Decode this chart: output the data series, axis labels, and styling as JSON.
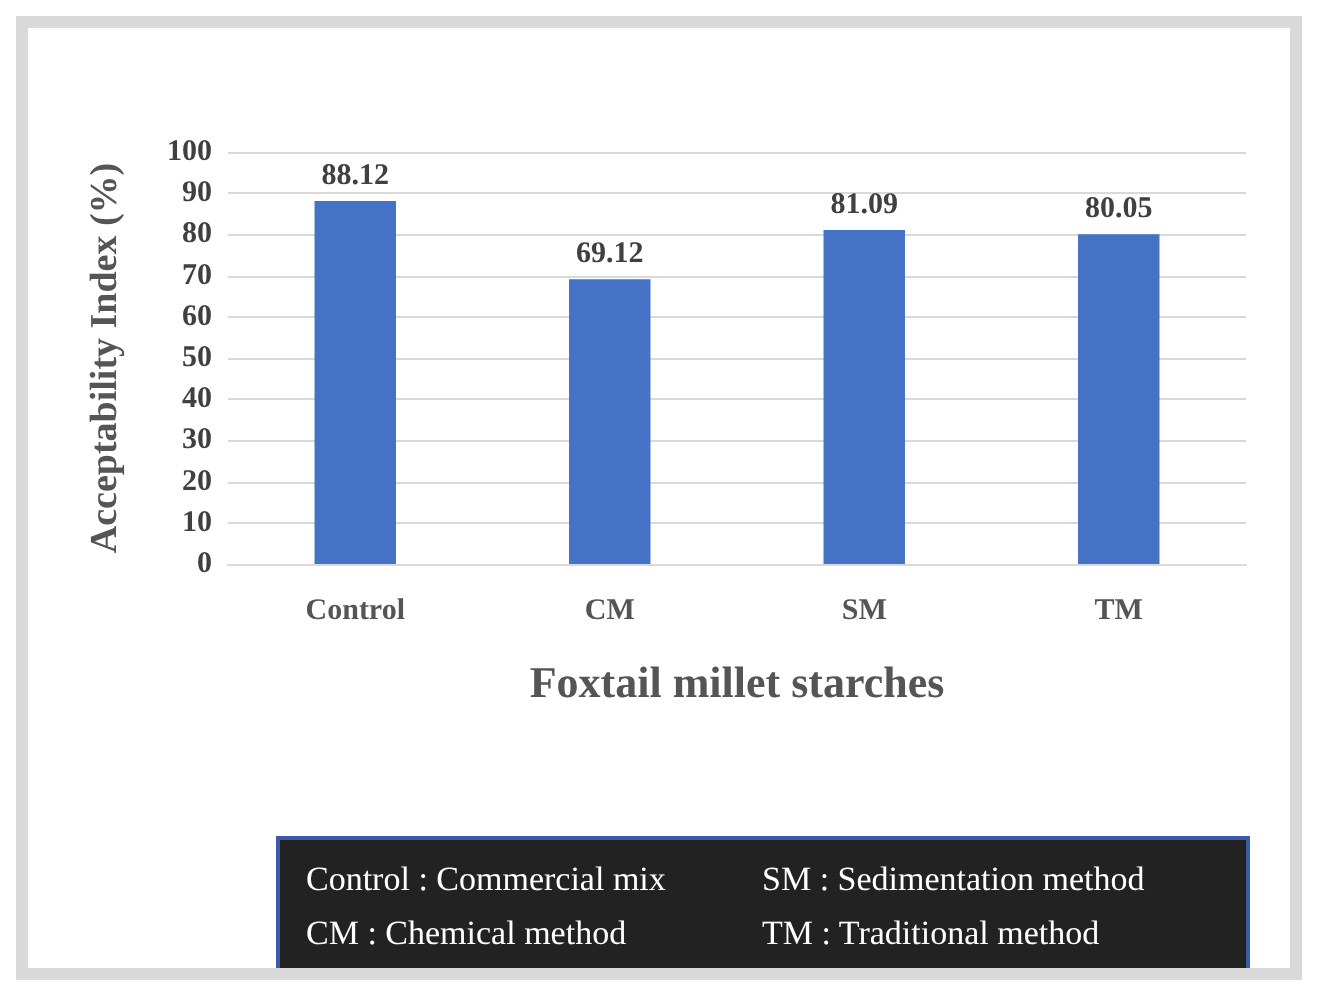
{
  "chart_data": {
    "type": "bar",
    "xlabel": "Foxtail millet starches",
    "ylabel": "Acceptability Index (%)",
    "categories": [
      "Control",
      "CM",
      "SM",
      "TM"
    ],
    "values": [
      88.12,
      69.12,
      81.09,
      80.05
    ],
    "color": "#4472c4",
    "data_labels": true,
    "ylim": [
      0,
      100
    ],
    "yticks": [
      0,
      10,
      20,
      30,
      40,
      50,
      60,
      70,
      80,
      90,
      100
    ],
    "grid": "y",
    "annotations": [
      "Control : Commercial mix",
      "SM : Sedimentation method",
      "CM : Chemical method",
      "TM : Traditional method"
    ]
  }
}
